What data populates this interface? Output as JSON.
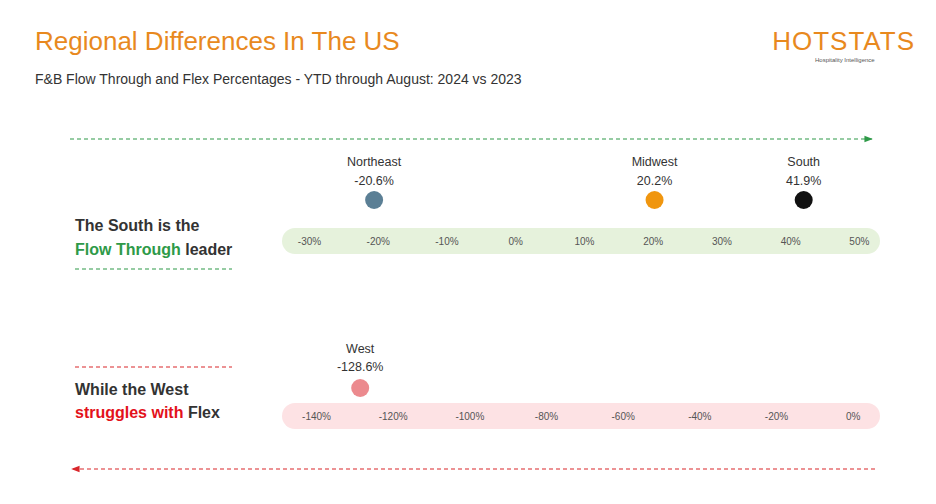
{
  "header": {
    "title": "Regional Differences In The US",
    "subtitle": "F&B Flow Through and Flex Percentages - YTD through August: 2024 vs 2023",
    "logo": "HOTSTATS",
    "logo_tagline": "Hospitality Intelligence"
  },
  "chart_data": [
    {
      "type": "dot",
      "title": [
        "The South is the",
        "Flow Through",
        "leader"
      ],
      "categories": [
        "Northeast",
        "Midwest",
        "South"
      ],
      "values": [
        -20.6,
        20.2,
        41.9
      ],
      "value_labels": [
        "-20.6%",
        "20.2%",
        "41.9%"
      ],
      "colors": [
        "#5b7f95",
        "#f0960f",
        "#111111"
      ],
      "data_labels": true,
      "xlim": [
        -34,
        53
      ],
      "xticks": [
        {
          "value": -30,
          "label": "-30%"
        },
        {
          "value": -20,
          "label": "-20%"
        },
        {
          "value": -10,
          "label": "-10%"
        },
        {
          "value": 0,
          "label": "0%"
        },
        {
          "value": 10,
          "label": "10%"
        },
        {
          "value": 20,
          "label": "20%"
        },
        {
          "value": 30,
          "label": "30%"
        },
        {
          "value": 40,
          "label": "40%"
        },
        {
          "value": 50,
          "label": "50%"
        }
      ]
    },
    {
      "type": "dot",
      "title": [
        "While the West",
        "struggles with",
        "Flex"
      ],
      "categories": [
        "West"
      ],
      "values": [
        -128.6
      ],
      "value_labels": [
        "-128.6%"
      ],
      "colors": [
        "#ec8a8e"
      ],
      "data_labels": true,
      "xlim": [
        -149,
        7
      ],
      "xticks": [
        {
          "value": -140,
          "label": "-140%"
        },
        {
          "value": -120,
          "label": "-120%"
        },
        {
          "value": -100,
          "label": "-100%"
        },
        {
          "value": -80,
          "label": "-80%"
        },
        {
          "value": -60,
          "label": "-60%"
        },
        {
          "value": -40,
          "label": "-40%"
        },
        {
          "value": -20,
          "label": "-20%"
        },
        {
          "value": 0,
          "label": "0%"
        }
      ]
    }
  ]
}
